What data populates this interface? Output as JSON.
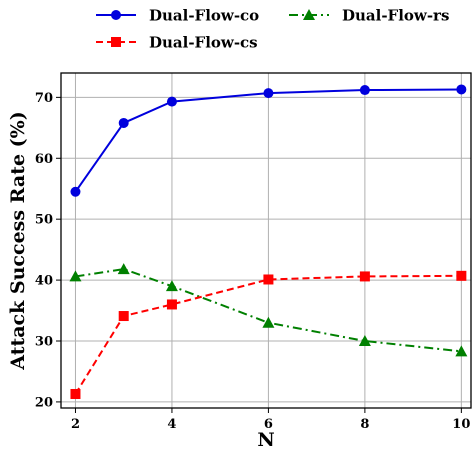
{
  "chart_data": {
    "type": "line",
    "x": [
      2,
      3,
      4,
      6,
      8,
      10
    ],
    "xlabel": "N",
    "ylabel": "Attack Success Rate (%)",
    "xlim": [
      1.7,
      10.2
    ],
    "ylim": [
      19,
      74
    ],
    "xticks": [
      "2",
      "4",
      "6",
      "8",
      "10"
    ],
    "yticks": [
      "20",
      "30",
      "40",
      "50",
      "60",
      "70"
    ],
    "grid": true,
    "legend_position": "top",
    "series": [
      {
        "name": "Dual-Flow-co",
        "values": [
          54.5,
          65.8,
          69.3,
          70.7,
          71.2,
          71.3
        ],
        "color": "#0000dd",
        "marker": "circle",
        "linestyle": "solid"
      },
      {
        "name": "Dual-Flow-rs",
        "values": [
          40.6,
          41.8,
          39.0,
          33.0,
          30.0,
          28.3
        ],
        "color": "#008000",
        "marker": "triangle",
        "linestyle": "dashdot"
      },
      {
        "name": "Dual-Flow-cs",
        "values": [
          21.3,
          34.1,
          36.0,
          40.1,
          40.6,
          40.7
        ],
        "color": "#ff0000",
        "marker": "square",
        "linestyle": "dashed"
      }
    ]
  }
}
